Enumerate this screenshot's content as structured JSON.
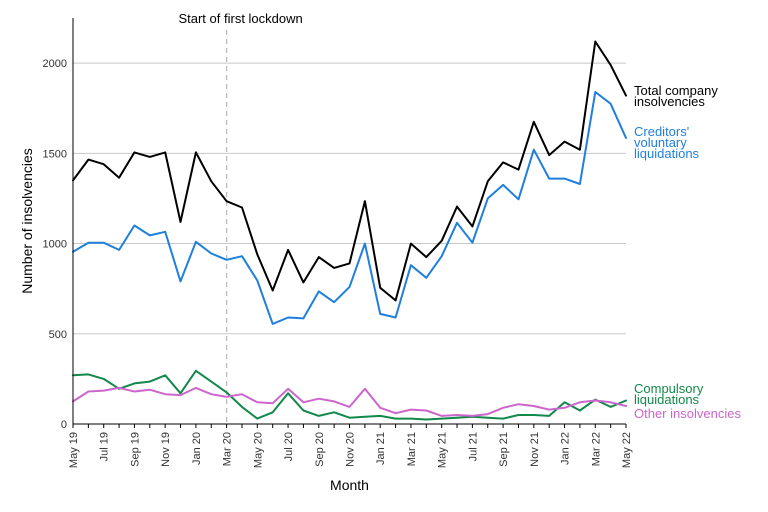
{
  "chart_data": {
    "type": "line",
    "xlabel": "Month",
    "ylabel": "Number of insolvencies",
    "ylim": [
      0,
      2250
    ],
    "yticks": [
      0,
      500,
      1000,
      1500,
      2000
    ],
    "grid": "horizontal",
    "legend": "right-side labels",
    "x": [
      "May 19",
      "Jun 19",
      "Jul 19",
      "Aug 19",
      "Sep 19",
      "Oct 19",
      "Nov 19",
      "Dec 19",
      "Jan 20",
      "Feb 20",
      "Mar 20",
      "Apr 20",
      "May 20",
      "Jun 20",
      "Jul 20",
      "Aug 20",
      "Sep 20",
      "Oct 20",
      "Nov 20",
      "Dec 20",
      "Jan 21",
      "Feb 21",
      "Mar 21",
      "Apr 21",
      "May 21",
      "Jun 21",
      "Jul 21",
      "Aug 21",
      "Sep 21",
      "Oct 21",
      "Nov 21",
      "Dec 21",
      "Jan 22",
      "Feb 22",
      "Mar 22",
      "Apr 22",
      "May 22"
    ],
    "xtick_labels": [
      "May 19",
      "Jul 19",
      "Sep 19",
      "Nov 19",
      "Jan 20",
      "Mar 20",
      "May 20",
      "Jul 20",
      "Sep 20",
      "Nov 20",
      "Jan 21",
      "Mar 21",
      "May 21",
      "Jul 21",
      "Sep 21",
      "Nov 21",
      "Jan 22",
      "Mar 22",
      "May 22"
    ],
    "annotation": {
      "text": "Start of first lockdown",
      "x": "Mar 20"
    },
    "series": [
      {
        "name": "Total company insolvencies",
        "label_lines": [
          "Total company",
          "insolvencies"
        ],
        "color": "#000000",
        "values": [
          1350,
          1465,
          1440,
          1365,
          1505,
          1480,
          1505,
          1120,
          1505,
          1345,
          1235,
          1200,
          940,
          740,
          965,
          785,
          925,
          865,
          890,
          1235,
          755,
          685,
          1000,
          925,
          1015,
          1205,
          1095,
          1345,
          1450,
          1410,
          1675,
          1490,
          1565,
          1520,
          2120,
          1990,
          1820
        ]
      },
      {
        "name": "Creditors' voluntary liquidations",
        "label_lines": [
          "Creditors'",
          "voluntary",
          "liquidations"
        ],
        "color": "#1f7fdc",
        "values": [
          955,
          1005,
          1005,
          965,
          1100,
          1045,
          1065,
          790,
          1010,
          945,
          910,
          930,
          795,
          555,
          590,
          585,
          735,
          675,
          760,
          1000,
          610,
          590,
          880,
          810,
          930,
          1115,
          1005,
          1250,
          1325,
          1245,
          1520,
          1360,
          1360,
          1330,
          1840,
          1775,
          1585
        ]
      },
      {
        "name": "Compulsory liquidations",
        "label_lines": [
          "Compulsory",
          "liquidations"
        ],
        "color": "#12884a",
        "values": [
          270,
          275,
          250,
          195,
          225,
          235,
          270,
          170,
          295,
          235,
          175,
          95,
          30,
          65,
          170,
          75,
          45,
          65,
          35,
          40,
          45,
          30,
          30,
          25,
          30,
          35,
          40,
          35,
          30,
          50,
          50,
          45,
          120,
          75,
          135,
          95,
          130
        ]
      },
      {
        "name": "Other insolvencies",
        "label_lines": [
          "Other insolvencies"
        ],
        "color": "#cc66cc",
        "values": [
          125,
          180,
          185,
          200,
          180,
          190,
          165,
          160,
          200,
          165,
          150,
          165,
          120,
          115,
          195,
          120,
          140,
          125,
          95,
          195,
          90,
          60,
          80,
          75,
          45,
          50,
          45,
          55,
          90,
          110,
          100,
          80,
          90,
          120,
          130,
          120,
          100
        ]
      }
    ]
  }
}
